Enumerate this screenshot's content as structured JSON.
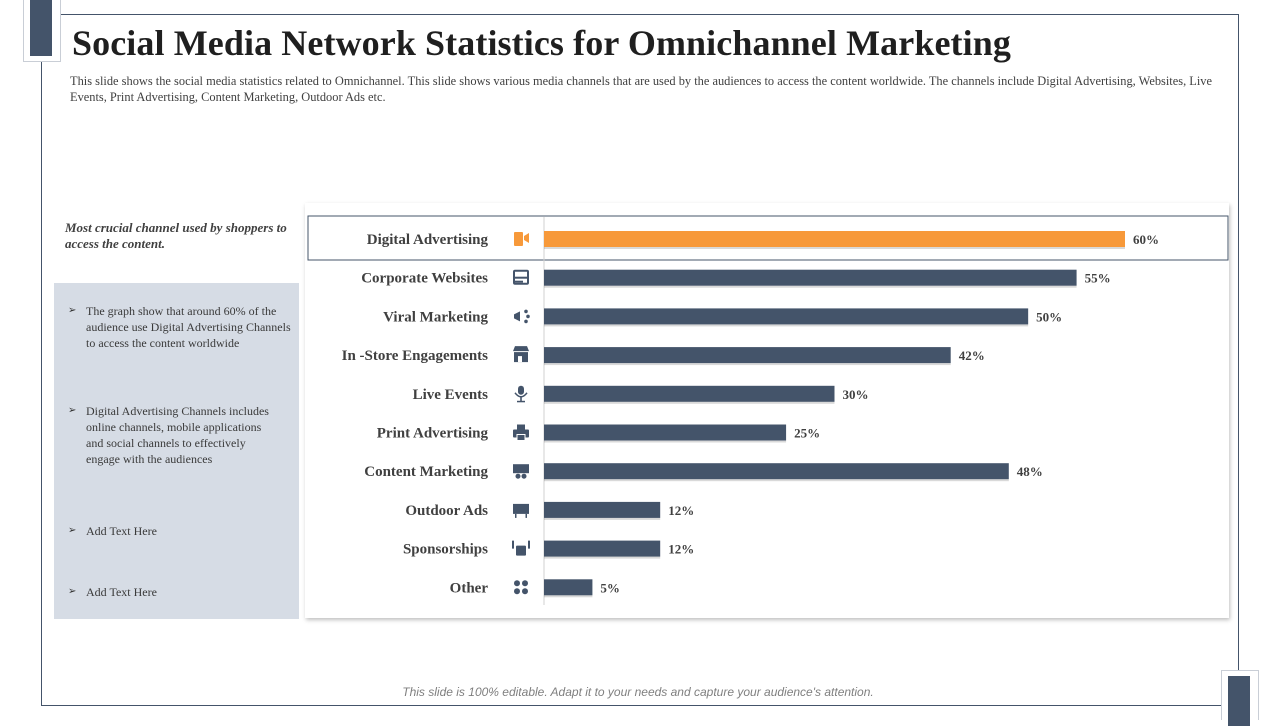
{
  "slide": {
    "title": "Social Media Network Statistics for Omnichannel Marketing",
    "description": "This slide shows the social media statistics related to Omnichannel. This slide shows various media channels that are used by the audiences to access the content worldwide. The channels include Digital Advertising, Websites, Live Events, Print Advertising, Content Marketing, Outdoor Ads etc.",
    "footer": "This slide is 100% editable. Adapt it to your needs and capture your audience's attention."
  },
  "sidebar": {
    "heading": "Most crucial channel used by shoppers to access the content.",
    "bullet_glyph": "➢",
    "notes": [
      "The graph show that around 60% of the audience use Digital Advertising Channels to access the content worldwide",
      "Digital Advertising Channels includes online channels, mobile applications and social channels to effectively engage with the audiences",
      "Add Text Here",
      "Add Text Here"
    ]
  },
  "colors": {
    "highlight": "#f7993a",
    "bar": "#44546a",
    "icon": "#44546a",
    "highlight_icon": "#f7993a",
    "notes_bg": "#d6dce5"
  },
  "chart_data": {
    "type": "bar",
    "orientation": "horizontal",
    "categories": [
      "Digital Advertising",
      "Corporate Websites",
      "Viral Marketing",
      "In -Store Engagements",
      "Live Events",
      "Print Advertising",
      "Content Marketing",
      "Outdoor Ads",
      "Sponsorships",
      "Other"
    ],
    "values": [
      60,
      55,
      50,
      42,
      30,
      25,
      48,
      12,
      12,
      5
    ],
    "value_labels": [
      "60%",
      "55%",
      "50%",
      "42%",
      "30%",
      "25%",
      "48%",
      "12%",
      "12%",
      "5%"
    ],
    "icons": [
      "megaphone-screen-icon",
      "browser-window-icon",
      "share-network-icon",
      "storefront-icon",
      "microphone-icon",
      "printer-icon",
      "presentation-board-icon",
      "billboard-icon",
      "money-hand-icon",
      "puzzle-network-icon"
    ],
    "highlighted_index": 0,
    "xlim": [
      0,
      65
    ],
    "grid": false,
    "legend": "none"
  }
}
